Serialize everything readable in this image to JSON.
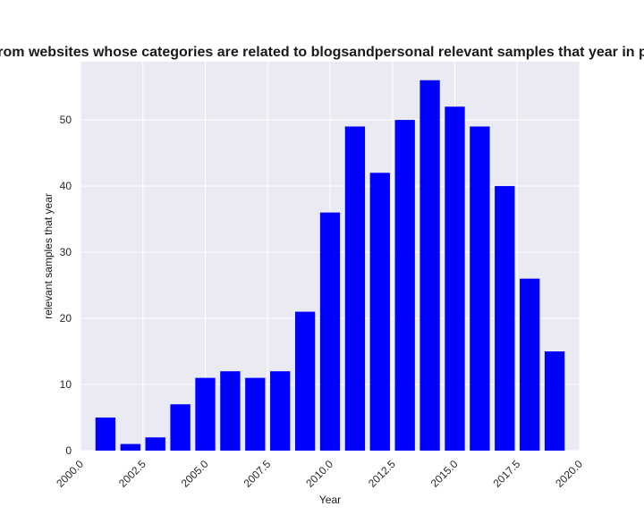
{
  "chart_data": {
    "type": "bar",
    "title": "Number of policies from websites whose  categories are related to blogsandpersonal relevant samples that year in privacy policies by year",
    "xlabel": "Year",
    "ylabel": "relevant samples that year",
    "x": [
      2001,
      2002,
      2003,
      2004,
      2005,
      2006,
      2007,
      2008,
      2009,
      2010,
      2011,
      2012,
      2013,
      2014,
      2015,
      2016,
      2017,
      2018,
      2019
    ],
    "values": [
      5,
      1,
      2,
      7,
      11,
      12,
      11,
      12,
      21,
      36,
      49,
      42,
      50,
      56,
      52,
      49,
      40,
      26,
      15
    ],
    "xlim": [
      2000,
      2020
    ],
    "ylim": [
      0,
      58.8
    ],
    "xticks": [
      2000.0,
      2002.5,
      2005.0,
      2007.5,
      2010.0,
      2012.5,
      2015.0,
      2017.5,
      2020.0
    ],
    "xtick_labels": [
      "2000.0",
      "2002.5",
      "2005.0",
      "2007.5",
      "2010.0",
      "2012.5",
      "2015.0",
      "2017.5",
      "2020.0"
    ],
    "yticks": [
      0,
      10,
      20,
      30,
      40,
      50
    ],
    "ytick_labels": [
      "0",
      "10",
      "20",
      "30",
      "40",
      "50"
    ],
    "bar_color": "#0000ff",
    "background_color": "#eaeaf2",
    "grid_color": "#ffffff",
    "grid": true,
    "legend": false
  }
}
